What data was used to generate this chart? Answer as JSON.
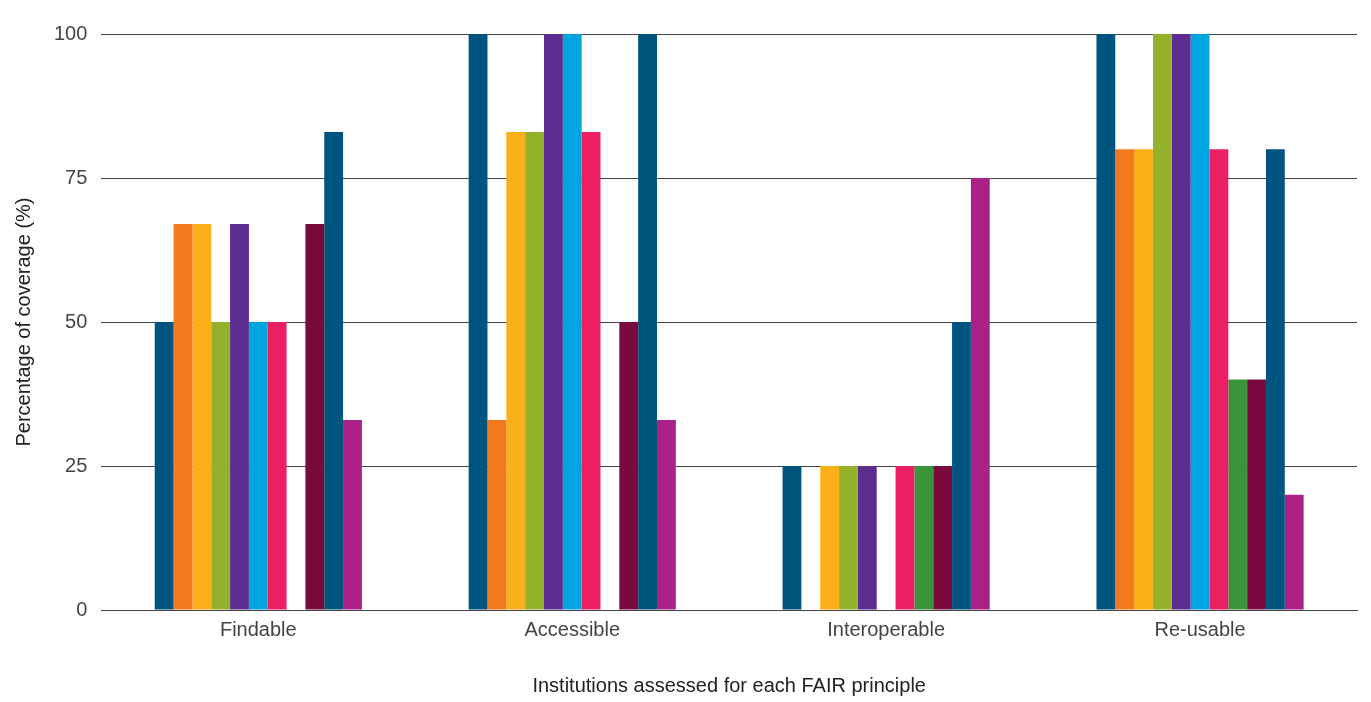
{
  "chart_data": {
    "type": "bar",
    "xlabel": "Institutions assessed for each FAIR principle",
    "ylabel": "Percentage of coverage (%)",
    "categories": [
      "Findable",
      "Accessible",
      "Interoperable",
      "Re-usable"
    ],
    "series": [
      {
        "color": "#00557f",
        "values": [
          50,
          100,
          25,
          100
        ]
      },
      {
        "color": "#f47a20",
        "values": [
          67,
          33,
          0,
          80
        ]
      },
      {
        "color": "#fbb01a",
        "values": [
          67,
          83,
          25,
          80
        ]
      },
      {
        "color": "#93b22a",
        "values": [
          50,
          83,
          25,
          100
        ]
      },
      {
        "color": "#5c2d91",
        "values": [
          67,
          100,
          25,
          100
        ]
      },
      {
        "color": "#00a4e0",
        "values": [
          50,
          100,
          0,
          100
        ]
      },
      {
        "color": "#ec1f63",
        "values": [
          50,
          83,
          25,
          80
        ]
      },
      {
        "color": "#3b9439",
        "values": [
          0,
          0,
          25,
          40
        ]
      },
      {
        "color": "#7a0a3e",
        "values": [
          67,
          50,
          25,
          40
        ]
      },
      {
        "color": "#00557f",
        "values": [
          83,
          100,
          50,
          80
        ]
      },
      {
        "color": "#ab2188",
        "values": [
          33,
          33,
          75,
          20
        ]
      }
    ],
    "ylim": [
      0,
      100
    ],
    "yticks": [
      0,
      25,
      50,
      75,
      100
    ],
    "grid": "y",
    "legend": false
  }
}
